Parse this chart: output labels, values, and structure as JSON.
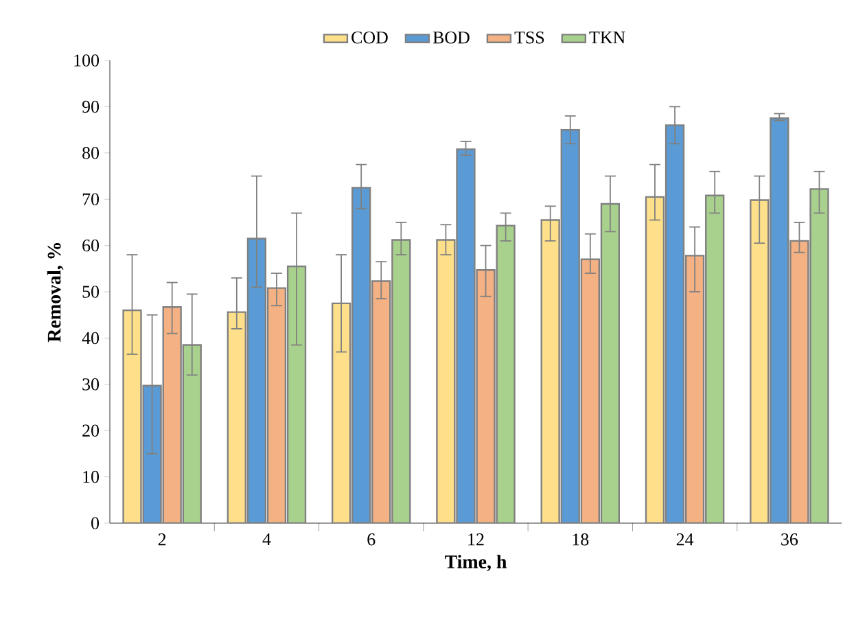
{
  "chart_data": {
    "type": "bar",
    "xlabel": "Time, h",
    "ylabel": "Removal, %",
    "categories": [
      "2",
      "4",
      "6",
      "12",
      "18",
      "24",
      "36"
    ],
    "series": [
      {
        "name": "COD",
        "color": "#ffe08a",
        "values": [
          46,
          45.6,
          47.5,
          61.2,
          65.5,
          70.5,
          69.8
        ],
        "errors": [
          [
            36.5,
            58
          ],
          [
            42,
            53
          ],
          [
            37,
            58
          ],
          [
            58,
            64.5
          ],
          [
            61,
            68.5
          ],
          [
            65.5,
            77.5
          ],
          [
            60.5,
            75
          ]
        ]
      },
      {
        "name": "BOD",
        "color": "#5b9bd5",
        "values": [
          29.7,
          61.5,
          72.5,
          80.8,
          85,
          86,
          87.5
        ],
        "errors": [
          [
            15,
            45
          ],
          [
            51,
            75
          ],
          [
            68,
            77.5
          ],
          [
            79.5,
            82.5
          ],
          [
            82,
            88
          ],
          [
            82,
            90
          ],
          [
            87,
            88.5
          ]
        ]
      },
      {
        "name": "TSS",
        "color": "#f4b183",
        "values": [
          46.7,
          50.8,
          52.3,
          54.7,
          57,
          57.8,
          61
        ],
        "errors": [
          [
            41,
            52
          ],
          [
            47,
            54
          ],
          [
            48.5,
            56.5
          ],
          [
            49,
            60
          ],
          [
            54,
            62.5
          ],
          [
            50,
            64
          ],
          [
            58.5,
            65
          ]
        ]
      },
      {
        "name": "TKN",
        "color": "#a9d18e",
        "values": [
          38.5,
          55.5,
          61.2,
          64.3,
          69,
          70.8,
          72.2
        ],
        "errors": [
          [
            32,
            49.5
          ],
          [
            38.5,
            67
          ],
          [
            58,
            65
          ],
          [
            61,
            67
          ],
          [
            63,
            75
          ],
          [
            67,
            76
          ],
          [
            67,
            76
          ]
        ]
      }
    ],
    "ylim": [
      0,
      100
    ],
    "yticks": [
      0,
      10,
      20,
      30,
      40,
      50,
      60,
      70,
      80,
      90,
      100
    ],
    "grid": false,
    "legend": "top"
  }
}
